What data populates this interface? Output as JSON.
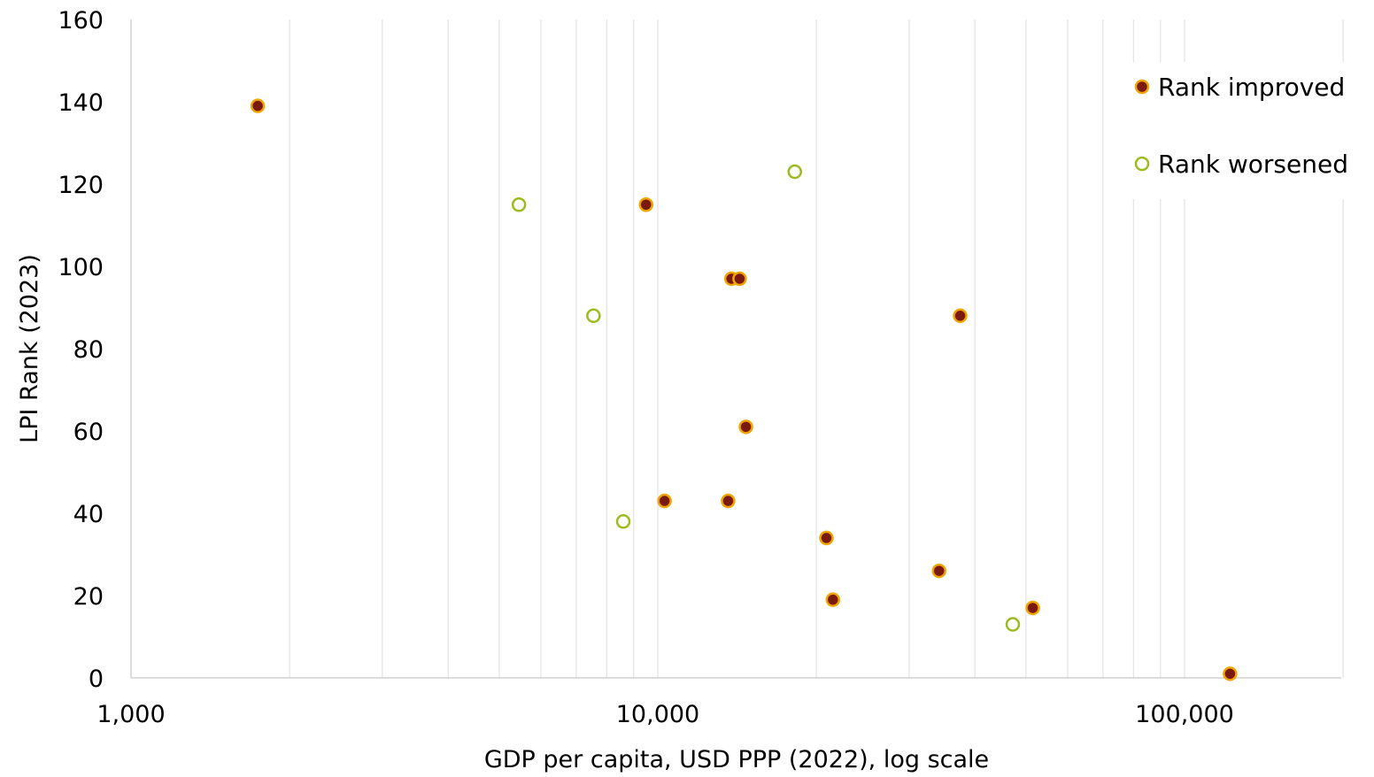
{
  "chart_data": {
    "type": "scatter",
    "title": "",
    "xlabel": "GDP per capita, USD PPP (2022), log scale",
    "ylabel": "LPI Rank (2023)",
    "x_scale": "log",
    "xlim": [
      1000,
      200000
    ],
    "ylim": [
      0,
      160
    ],
    "x_ticks": [
      1000,
      10000,
      100000
    ],
    "x_tick_labels": [
      "1,000",
      "10,000",
      "100,000"
    ],
    "y_ticks": [
      0,
      20,
      40,
      60,
      80,
      100,
      120,
      140,
      160
    ],
    "y_tick_labels": [
      "0",
      "20",
      "40",
      "60",
      "80",
      "100",
      "120",
      "140",
      "160"
    ],
    "grid": "vertical minor gridlines",
    "legend_position": "top-right",
    "colors": {
      "improved_fill": "#7a1a0e",
      "improved_edge": "#f0a500",
      "worsened_edge": "#9bbb1f",
      "gridline": "#e3e3e3",
      "axis": "#d0d0d0"
    },
    "series": [
      {
        "name": "Rank improved",
        "marker": "filled",
        "points": [
          {
            "x": 1740,
            "y": 139
          },
          {
            "x": 9500,
            "y": 115
          },
          {
            "x": 13800,
            "y": 97
          },
          {
            "x": 14300,
            "y": 97
          },
          {
            "x": 37500,
            "y": 88
          },
          {
            "x": 14700,
            "y": 61
          },
          {
            "x": 10300,
            "y": 43
          },
          {
            "x": 13600,
            "y": 43
          },
          {
            "x": 20900,
            "y": 34
          },
          {
            "x": 34200,
            "y": 26
          },
          {
            "x": 21500,
            "y": 19
          },
          {
            "x": 51500,
            "y": 17
          },
          {
            "x": 122000,
            "y": 1
          }
        ]
      },
      {
        "name": "Rank worsened",
        "marker": "hollow",
        "points": [
          {
            "x": 5450,
            "y": 115
          },
          {
            "x": 18200,
            "y": 123
          },
          {
            "x": 7550,
            "y": 88
          },
          {
            "x": 8600,
            "y": 38
          },
          {
            "x": 47200,
            "y": 13
          }
        ]
      }
    ]
  }
}
